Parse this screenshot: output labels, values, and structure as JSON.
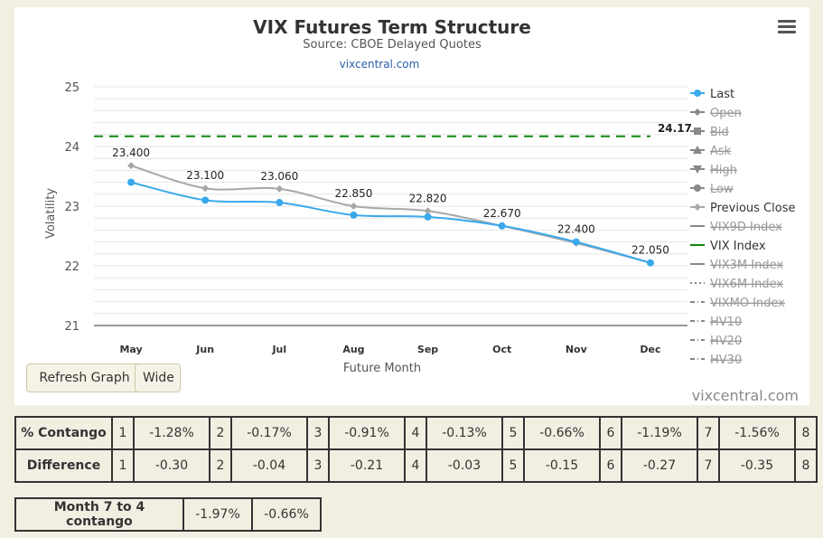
{
  "chart_data": {
    "type": "line",
    "title": "VIX Futures Term Structure",
    "subtitle": "Source: CBOE Delayed Quotes",
    "source_link": "vixcentral.com",
    "xlabel": "Future Month",
    "ylabel": "Volatility",
    "categories": [
      "May",
      "Jun",
      "Jul",
      "Aug",
      "Sep",
      "Oct",
      "Nov",
      "Dec"
    ],
    "ylim": [
      21,
      25
    ],
    "yticks": [
      21,
      22,
      23,
      24,
      25
    ],
    "grid": true,
    "series": [
      {
        "name": "Last",
        "color": "#3aa9ec",
        "values": [
          23.4,
          23.1,
          23.06,
          22.85,
          22.82,
          22.67,
          22.4,
          22.05
        ],
        "labels": [
          "23.400",
          "23.100",
          "23.060",
          "22.850",
          "22.820",
          "22.670",
          "22.400",
          "22.050"
        ]
      },
      {
        "name": "Previous Close",
        "color": "#a8a8a8",
        "values": [
          23.68,
          23.3,
          23.29,
          23.0,
          22.92,
          22.67,
          22.38,
          22.05
        ]
      }
    ],
    "vix_index": {
      "name": "VIX Index",
      "value": 24.17,
      "label": "24.17",
      "color": "#118811"
    },
    "legend_position": "right",
    "legend": [
      {
        "name": "Last",
        "symbol": "circle",
        "color": "#3aa9ec",
        "dash": "solid",
        "hidden": false
      },
      {
        "name": "Open",
        "symbol": "diamond",
        "color": "#666666",
        "dash": "solid",
        "hidden": true
      },
      {
        "name": "Bid",
        "symbol": "square",
        "color": "#666666",
        "dash": "solid",
        "hidden": true
      },
      {
        "name": "Ask",
        "symbol": "triangle",
        "color": "#666666",
        "dash": "solid",
        "hidden": true
      },
      {
        "name": "High",
        "symbol": "triangle-down",
        "color": "#666666",
        "dash": "solid",
        "hidden": true
      },
      {
        "name": "Low",
        "symbol": "circle",
        "color": "#666666",
        "dash": "solid",
        "hidden": true
      },
      {
        "name": "Previous Close",
        "symbol": "diamond",
        "color": "#a8a8a8",
        "dash": "solid",
        "hidden": false
      },
      {
        "name": "VIX9D Index",
        "symbol": "none",
        "color": "#888888",
        "dash": "solid",
        "hidden": true
      },
      {
        "name": "VIX Index",
        "symbol": "none",
        "color": "#118811",
        "dash": "solid",
        "hidden": false
      },
      {
        "name": "VIX3M Index",
        "symbol": "none",
        "color": "#888888",
        "dash": "solid",
        "hidden": true
      },
      {
        "name": "VIX6M Index",
        "symbol": "none",
        "color": "#888888",
        "dash": "dot",
        "hidden": true
      },
      {
        "name": "VIXMO Index",
        "symbol": "none",
        "color": "#888888",
        "dash": "dashdot",
        "hidden": true
      },
      {
        "name": "HV10",
        "symbol": "none",
        "color": "#888888",
        "dash": "dashdot",
        "hidden": true
      },
      {
        "name": "HV20",
        "symbol": "none",
        "color": "#888888",
        "dash": "dashdot",
        "hidden": true
      },
      {
        "name": "HV30",
        "symbol": "none",
        "color": "#888888",
        "dash": "dashdot",
        "hidden": true
      }
    ]
  },
  "controls": {
    "refresh_label": "Refresh Graph",
    "wide_label": "Wide"
  },
  "credit": "vixcentral.com",
  "contango_table": {
    "rows": [
      {
        "header": "% Contango",
        "cells": [
          {
            "num": "1",
            "val": "-1.28%"
          },
          {
            "num": "2",
            "val": "-0.17%"
          },
          {
            "num": "3",
            "val": "-0.91%"
          },
          {
            "num": "4",
            "val": "-0.13%"
          },
          {
            "num": "5",
            "val": "-0.66%"
          },
          {
            "num": "6",
            "val": "-1.19%"
          },
          {
            "num": "7",
            "val": "-1.56%"
          }
        ],
        "last": "8"
      },
      {
        "header": "Difference",
        "cells": [
          {
            "num": "1",
            "val": "-0.30"
          },
          {
            "num": "2",
            "val": "-0.04"
          },
          {
            "num": "3",
            "val": "-0.21"
          },
          {
            "num": "4",
            "val": "-0.03"
          },
          {
            "num": "5",
            "val": "-0.15"
          },
          {
            "num": "6",
            "val": "-0.27"
          },
          {
            "num": "7",
            "val": "-0.35"
          }
        ],
        "last": "8"
      }
    ]
  },
  "summary_table": {
    "header": "Month 7 to 4 contango",
    "values": [
      "-1.97%",
      "-0.66%"
    ]
  }
}
